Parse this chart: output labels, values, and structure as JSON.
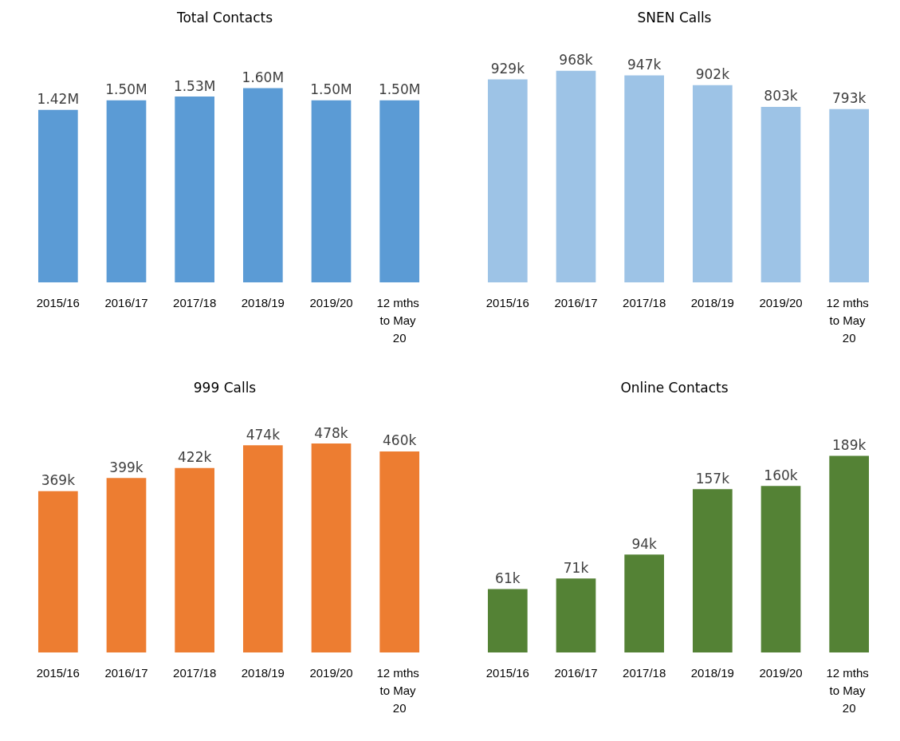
{
  "chart_data": [
    {
      "type": "bar",
      "title": "Total Contacts",
      "categories": [
        "2015/16",
        "2016/17",
        "2017/18",
        "2018/19",
        "2019/20",
        "12 mths to May 20"
      ],
      "values": [
        1.42,
        1.5,
        1.53,
        1.6,
        1.5,
        1.5
      ],
      "value_labels": [
        "1.42M",
        "1.50M",
        "1.53M",
        "1.60M",
        "1.50M",
        "1.50M"
      ],
      "color": "#5b9bd5"
    },
    {
      "type": "bar",
      "title": "SNEN Calls",
      "categories": [
        "2015/16",
        "2016/17",
        "2017/18",
        "2018/19",
        "2019/20",
        "12 mths to May 20"
      ],
      "values": [
        929,
        968,
        947,
        902,
        803,
        793
      ],
      "value_labels": [
        "929k",
        "968k",
        "947k",
        "902k",
        "803k",
        "793k"
      ],
      "color": "#9dc3e6"
    },
    {
      "type": "bar",
      "title": "999 Calls",
      "categories": [
        "2015/16",
        "2016/17",
        "2017/18",
        "2018/19",
        "2019/20",
        "12 mths to May 20"
      ],
      "values": [
        369,
        399,
        422,
        474,
        478,
        460
      ],
      "value_labels": [
        "369k",
        "399k",
        "422k",
        "474k",
        "478k",
        "460k"
      ],
      "color": "#ed7d31"
    },
    {
      "type": "bar",
      "title": "Online Contacts",
      "categories": [
        "2015/16",
        "2016/17",
        "2017/18",
        "2018/19",
        "2019/20",
        "12 mths to May 20"
      ],
      "values": [
        61,
        71,
        94,
        157,
        160,
        189
      ],
      "value_labels": [
        "61k",
        "71k",
        "94k",
        "157k",
        "160k",
        "189k"
      ],
      "color": "#548235"
    }
  ]
}
